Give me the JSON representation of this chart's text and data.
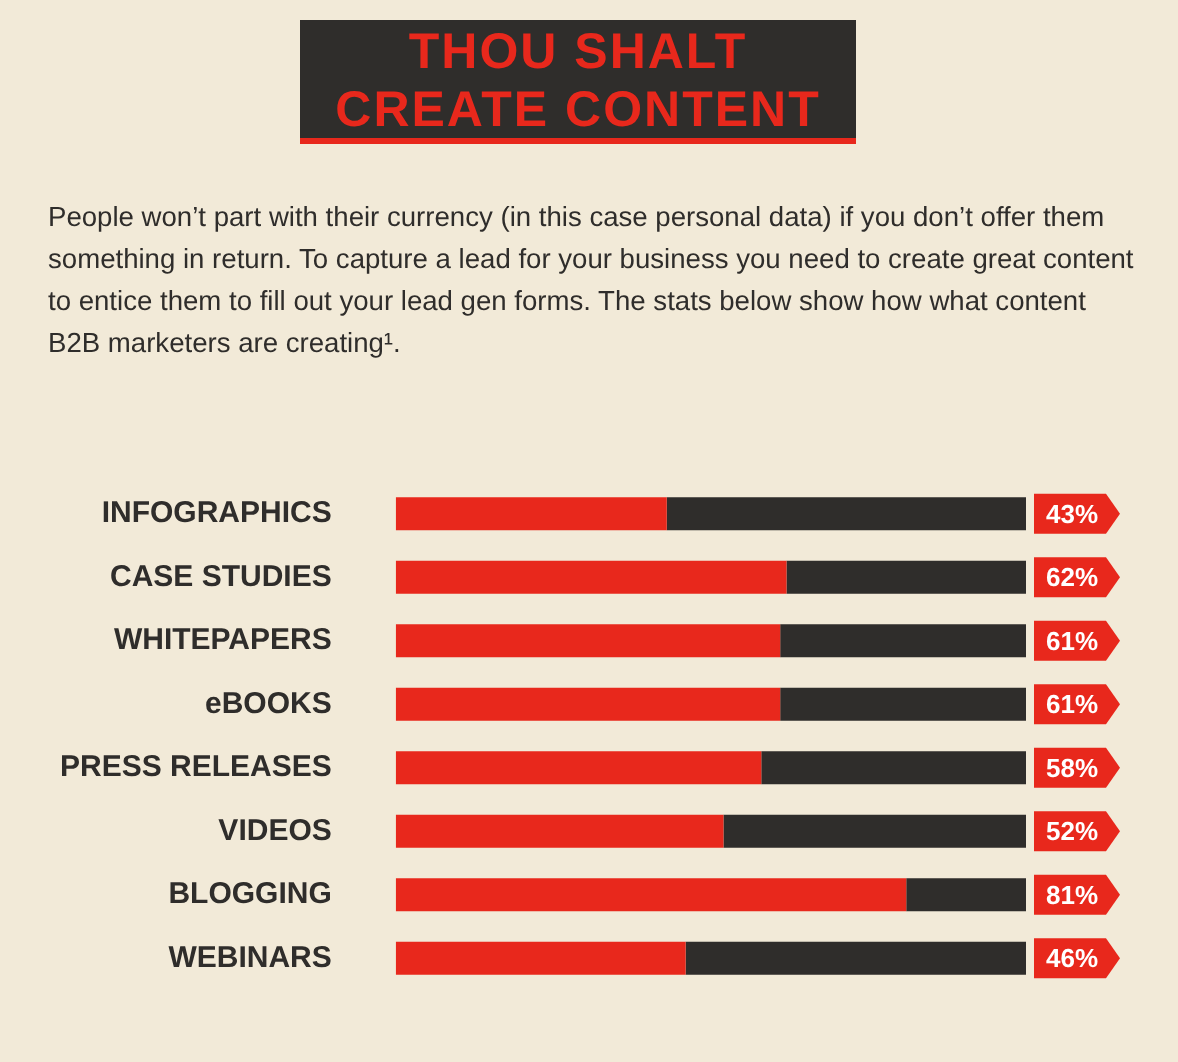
{
  "chart_data": {
    "type": "bar",
    "orientation": "horizontal",
    "stacked": true,
    "title": "THOU SHALT CREATE CONTENT",
    "subtitle": "People won’t part with their currency (in this case personal data) if you don’t offer them something in return. To capture a lead for your business you need to create great content to entice them to fill out your lead gen forms. The stats below show how what content B2B marketers are creating¹.",
    "categories": [
      "INFOGRAPHICS",
      "CASE STUDIES",
      "WHITEPAPERS",
      "eBOOKS",
      "PRESS RELEASES",
      "VIDEOS",
      "BLOGGING",
      "WEBINARS"
    ],
    "series": [
      {
        "color": "#e8281c",
        "values": [
          43,
          62,
          61,
          61,
          58,
          52,
          81,
          46
        ],
        "value_labels": [
          "43%",
          "62%",
          "61%",
          "61%",
          "58%",
          "52%",
          "81%",
          "46%"
        ]
      },
      {
        "color": "#2f2d2b",
        "values": [
          57,
          38,
          39,
          39,
          42,
          48,
          19,
          54
        ]
      }
    ],
    "xlim": [
      0,
      100
    ],
    "tick_labels": "y"
  }
}
